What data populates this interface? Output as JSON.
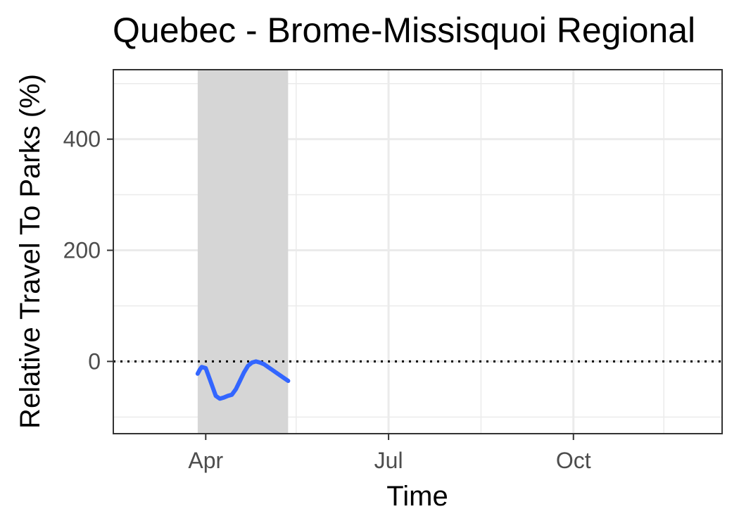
{
  "chart_data": {
    "type": "line",
    "title": "Quebec - Brome-Missisquoi Regional",
    "xlabel": "Time",
    "ylabel": "Relative Travel To Parks (%)",
    "x_ticks": [
      "Apr",
      "Jul",
      "Oct"
    ],
    "y_ticks": [
      0,
      200,
      400
    ],
    "xlim": [
      "2020-02-15",
      "2020-12-14"
    ],
    "ylim": [
      -130,
      525
    ],
    "grid": true,
    "reference_line": {
      "y": 0,
      "style": "dotted",
      "color": "#000000"
    },
    "shaded_region": {
      "x_start": "2020-03-28",
      "x_end": "2020-05-12",
      "color": "#d6d6d6"
    },
    "series": [
      {
        "color": "#3366ff",
        "x": [
          "2020-03-28",
          "2020-03-29",
          "2020-03-30",
          "2020-04-01",
          "2020-04-02",
          "2020-04-04",
          "2020-04-06",
          "2020-04-08",
          "2020-04-10",
          "2020-04-12",
          "2020-04-14",
          "2020-04-16",
          "2020-04-18",
          "2020-04-20",
          "2020-04-22",
          "2020-04-24",
          "2020-04-26",
          "2020-04-28",
          "2020-04-30",
          "2020-05-02",
          "2020-05-04",
          "2020-05-06",
          "2020-05-08",
          "2020-05-10",
          "2020-05-12"
        ],
        "y": [
          -22,
          -15,
          -10,
          -12,
          -22,
          -42,
          -62,
          -67,
          -65,
          -62,
          -60,
          -50,
          -35,
          -20,
          -8,
          -2,
          0,
          -2,
          -5,
          -10,
          -15,
          -20,
          -25,
          -30,
          -35
        ]
      }
    ]
  }
}
